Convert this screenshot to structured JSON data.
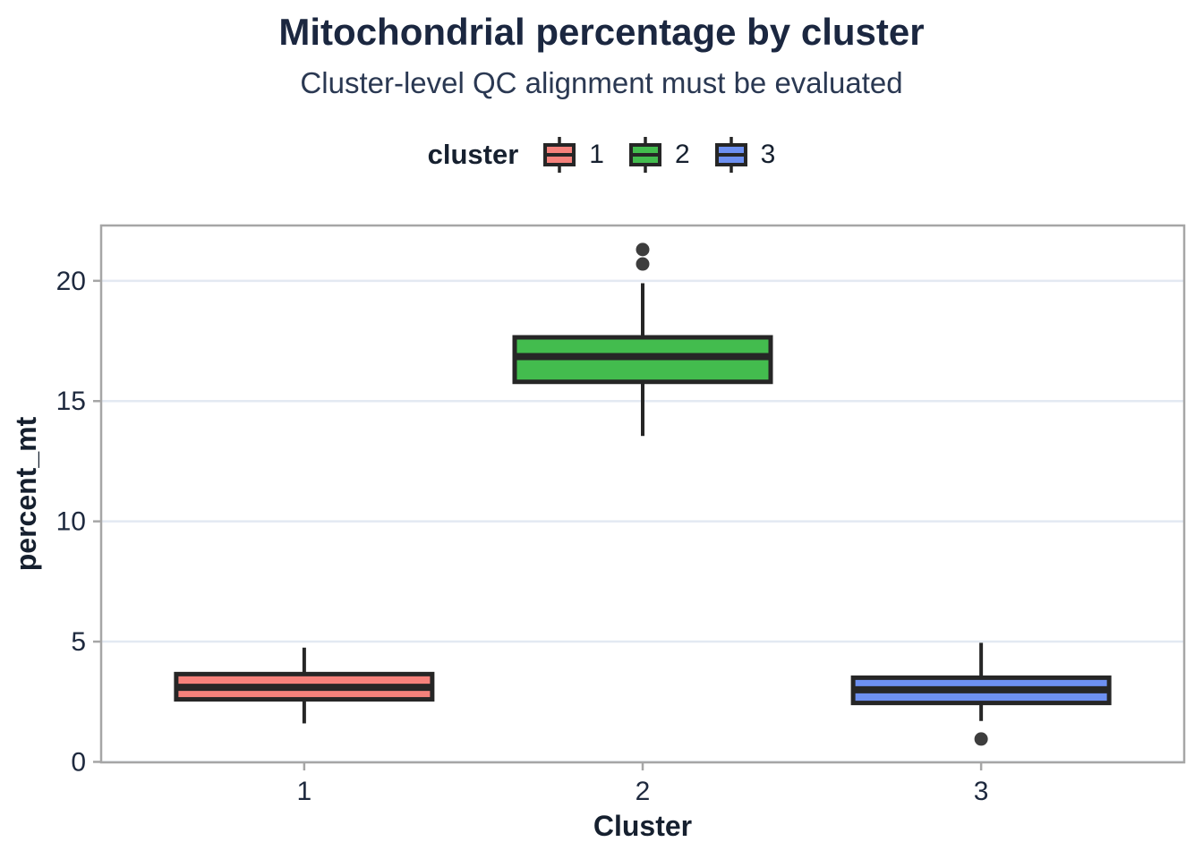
{
  "header": {
    "title": "Mitochondrial percentage by cluster",
    "subtitle": "Cluster-level QC alignment must be evaluated"
  },
  "legend": {
    "title": "cluster",
    "items": [
      {
        "label": "1",
        "color": "#f5817b"
      },
      {
        "label": "2",
        "color": "#43bc4e"
      },
      {
        "label": "3",
        "color": "#6d90f1"
      }
    ]
  },
  "chart_data": {
    "type": "boxplot",
    "title": "Mitochondrial percentage by cluster",
    "subtitle": "Cluster-level QC alignment must be evaluated",
    "xlabel": "Cluster",
    "ylabel": "percent_mt",
    "categories": [
      "1",
      "2",
      "3"
    ],
    "yticks": [
      0,
      5,
      10,
      15,
      20
    ],
    "ylim": [
      -0.02,
      22.3
    ],
    "grid": "horizontal-only",
    "legend_position": "top",
    "series": [
      {
        "name": "1",
        "color": "#f5817b",
        "whisker_low": 1.6,
        "q1": 2.6,
        "median": 3.1,
        "q3": 3.65,
        "whisker_high": 4.75,
        "outliers": []
      },
      {
        "name": "2",
        "color": "#43bc4e",
        "whisker_low": 13.55,
        "q1": 15.8,
        "median": 16.85,
        "q3": 17.65,
        "whisker_high": 19.9,
        "outliers": [
          20.7,
          21.3
        ]
      },
      {
        "name": "3",
        "color": "#6d90f1",
        "whisker_low": 1.7,
        "q1": 2.45,
        "median": 3.0,
        "q3": 3.5,
        "whisker_high": 4.95,
        "outliers": [
          0.95
        ]
      }
    ],
    "style_colors": {
      "box_stroke": "#262626",
      "outlier_fill": "#3d3d3d",
      "gridline": "#e3e9f2",
      "panel_border": "#a6a6a6",
      "tick_mark": "#a6a6a6",
      "axis_text": "#1e293e",
      "axis_title": "#16202f"
    }
  }
}
